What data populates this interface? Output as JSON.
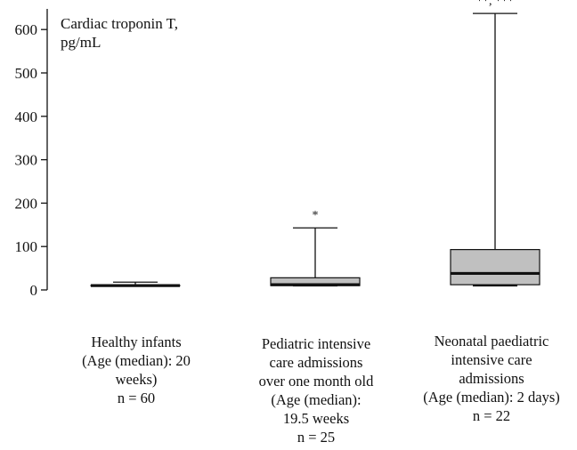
{
  "chart_data": {
    "type": "box",
    "ylabel": [
      "Cardiac troponin T,",
      "pg/mL"
    ],
    "ylim": [
      0,
      650
    ],
    "yticks": [
      0,
      100,
      200,
      300,
      400,
      500,
      600
    ],
    "grid": false,
    "categories": [
      {
        "label": [
          "Healthy infants",
          "(Age (median): 20",
          "weeks)",
          "n = 60"
        ],
        "whisker_low": 10,
        "q1": 10,
        "median": 10,
        "q3": 10,
        "whisker_high": 18,
        "annotation": ""
      },
      {
        "label": [
          "Pediatric intensive",
          "care admissions",
          "over one month old",
          "(Age (median):",
          "19.5 weeks",
          "n = 25"
        ],
        "whisker_low": 10,
        "q1": 10,
        "median": 12,
        "q3": 28,
        "whisker_high": 143,
        "annotation": "*"
      },
      {
        "label": [
          "Neonatal paediatric",
          "intensive care",
          "admissions",
          "(Age (median): 2 days)",
          "n = 22"
        ],
        "whisker_low": 10,
        "q1": 12,
        "median": 38,
        "q3": 93,
        "whisker_high": 637,
        "annotation": "**, ***"
      }
    ],
    "colors": {
      "box": "#c0c0c0",
      "line": "#111111"
    }
  }
}
